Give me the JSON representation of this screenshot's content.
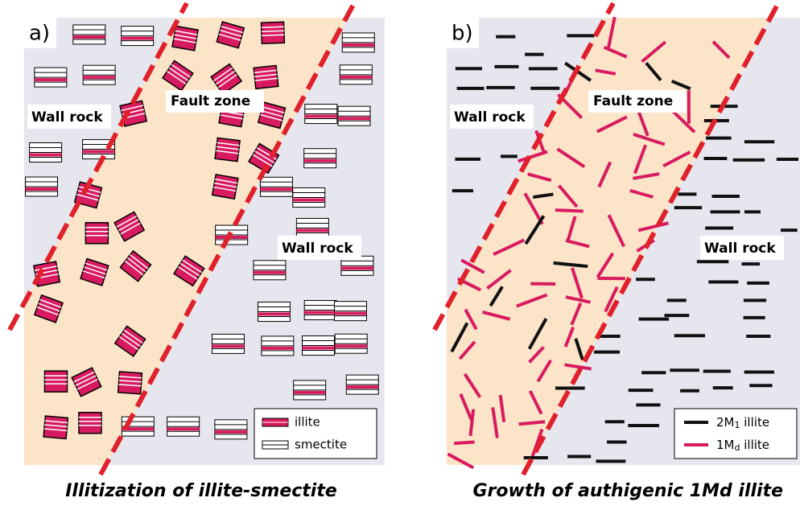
{
  "panels": [
    {
      "label": "a)",
      "wall_rock_left": "Wall rock",
      "fault_zone": "Fault zone",
      "wall_rock_right": "Wall rock",
      "legend": [
        {
          "text": "illite"
        },
        {
          "text": "smectite"
        }
      ],
      "caption": "Illitization of illite-smectite"
    },
    {
      "label": "b)",
      "wall_rock_left": "Wall rock",
      "fault_zone": "Fault zone",
      "wall_rock_right": "Wall rock",
      "legend": [
        {
          "main": "2M",
          "sub": "1",
          "rest": " illite"
        },
        {
          "main": "1M",
          "sub": "d",
          "rest": " illite"
        }
      ],
      "caption": "Growth of authigenic 1Md illite"
    }
  ]
}
